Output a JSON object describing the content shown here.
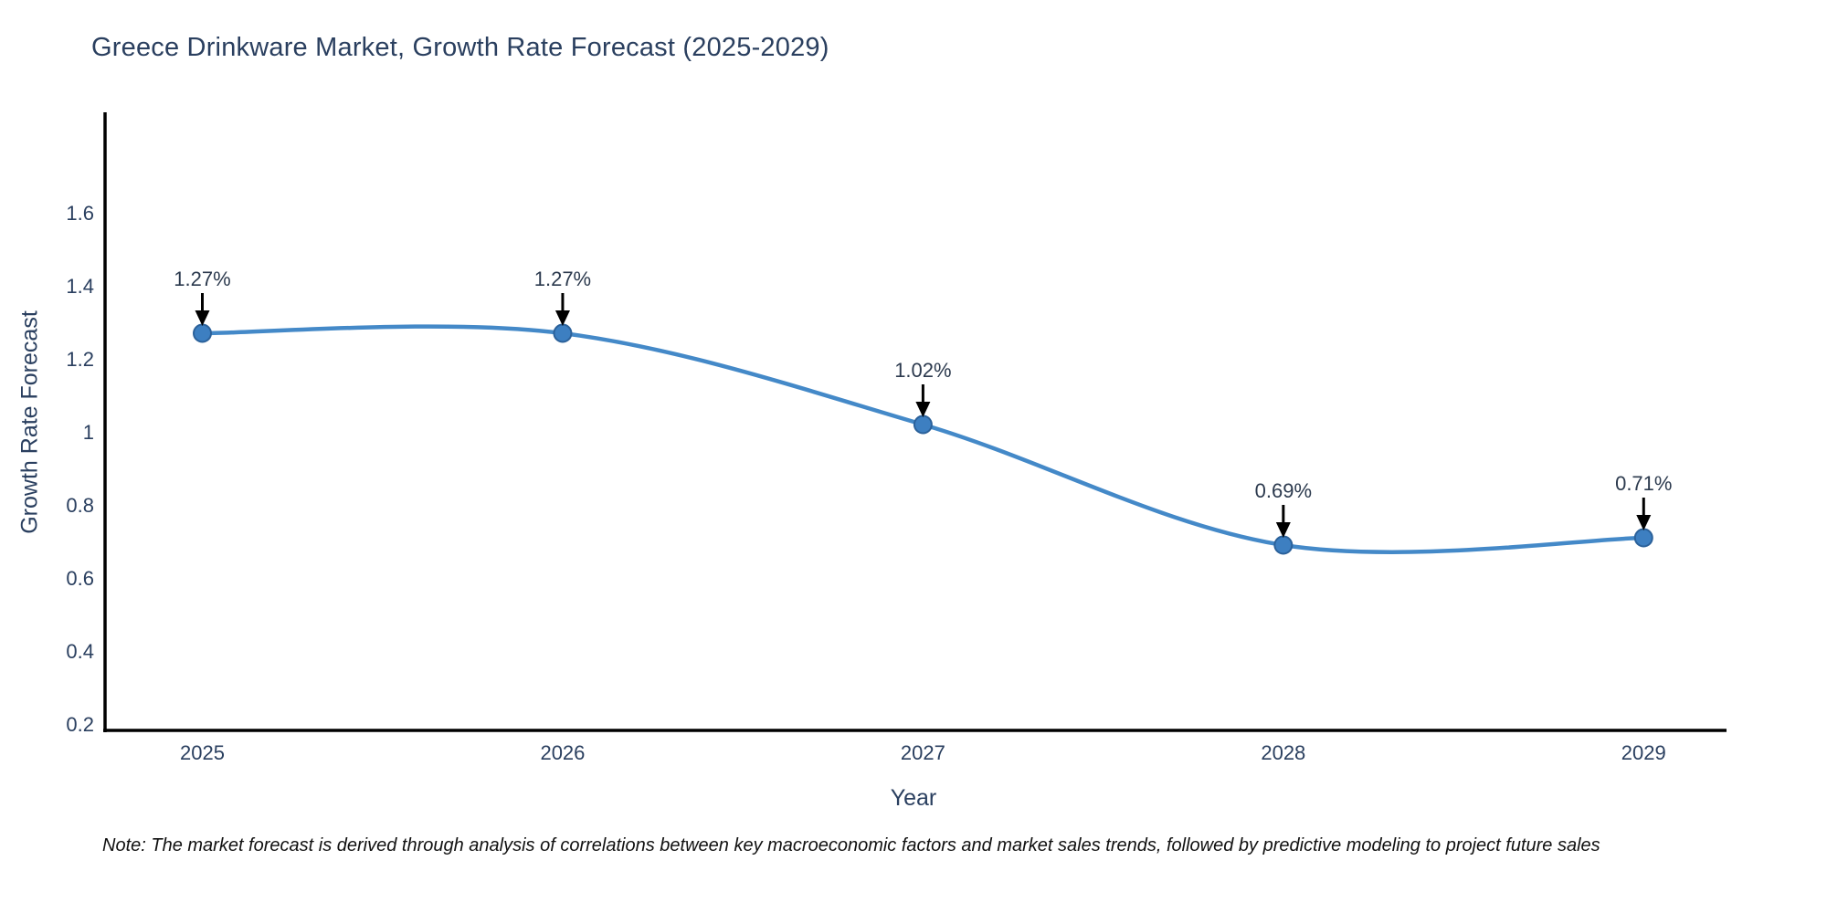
{
  "chart_data": {
    "type": "line",
    "title": "Greece Drinkware Market, Growth Rate Forecast (2025-2029)",
    "xlabel": "Year",
    "ylabel": "Growth Rate Forecast",
    "x": [
      2025,
      2026,
      2027,
      2028,
      2029
    ],
    "xticklabels": [
      "2025",
      "2026",
      "2027",
      "2028",
      "2029"
    ],
    "series": [
      {
        "name": "Growth Rate Forecast",
        "values": [
          1.27,
          1.27,
          1.02,
          0.69,
          0.71
        ]
      }
    ],
    "point_labels": [
      "1.27%",
      "1.27%",
      "1.02%",
      "0.69%",
      "0.71%"
    ],
    "yticks": [
      0.2,
      0.4,
      0.6,
      0.8,
      1.0,
      1.2,
      1.4,
      1.6
    ],
    "yticklabels": [
      "0.2",
      "0.4",
      "0.6",
      "0.8",
      "1",
      "1.2",
      "1.4",
      "1.6"
    ],
    "ylim": [
      0.1825,
      1.87
    ],
    "xlim": [
      2024.73,
      2029.23
    ],
    "grid": false,
    "legend_position": "none",
    "line_shape": "spline",
    "annotation_style": "down-arrow",
    "note": "Note: The market forecast is derived through analysis of correlations between key macroeconomic factors and market sales trends, followed by predictive modeling to project future sales",
    "colors": {
      "background": "#ffffff",
      "title_text": "#2a3f5f",
      "tick_text": "#2a3f5f",
      "axis_label_text": "#2a3f5f",
      "annotation_text": "#2c3a4e",
      "line": "#4489c8",
      "marker_fill": "#3d7fc1",
      "marker_stroke": "#2b619a",
      "arrow": "#000000",
      "spine": "#000000",
      "note_text": "#111111"
    }
  }
}
